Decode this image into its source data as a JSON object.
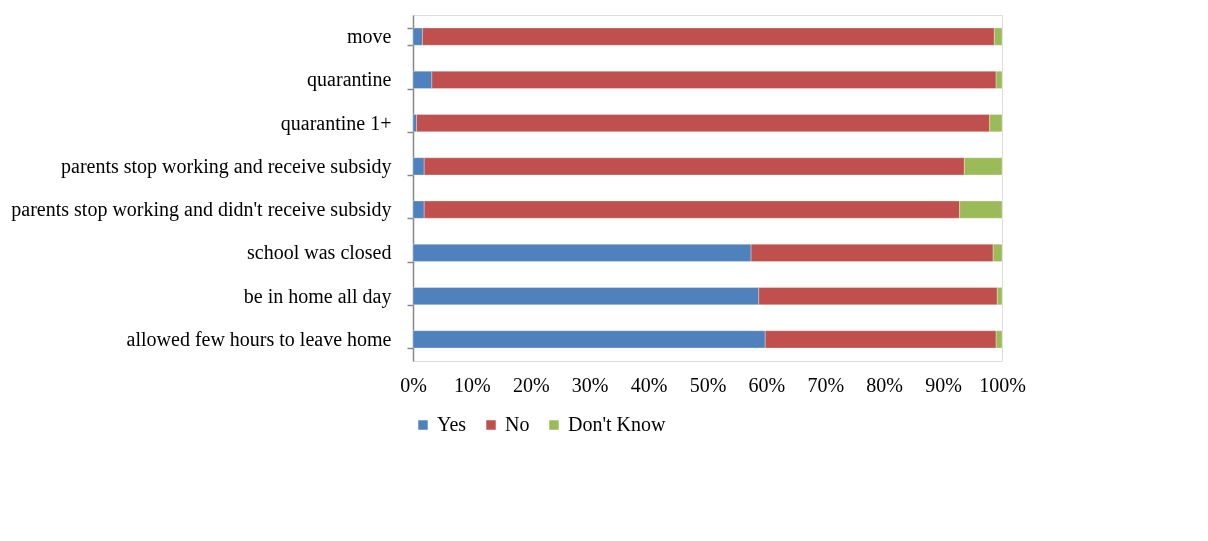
{
  "chart_data": {
    "type": "bar",
    "orientation": "horizontal",
    "stacked": true,
    "categories": [
      "move",
      "quarantine",
      "quarantine 1+",
      "parents stop working and receive  subsidy",
      "parents stop working and didn't receive  subsidy",
      "school was closed",
      "be in home all day",
      "allowed few hours to leave home"
    ],
    "series": [
      {
        "name": "Yes",
        "color": "#4f81bd",
        "values": [
          1.6,
          3.2,
          0.6,
          1.9,
          1.9,
          57.4,
          58.7,
          59.8
        ]
      },
      {
        "name": "No",
        "color": "#c0504d",
        "values": [
          97.1,
          95.8,
          97.3,
          91.7,
          90.9,
          41.1,
          40.5,
          39.2
        ]
      },
      {
        "name": "Don't Know",
        "color": "#9bbb59",
        "values": [
          1.3,
          1.0,
          2.1,
          6.4,
          7.2,
          1.5,
          0.8,
          1.0
        ]
      }
    ],
    "xlim": [
      0,
      100
    ],
    "xticks": [
      {
        "value": 0,
        "label": "0%"
      },
      {
        "value": 10,
        "label": "10%"
      },
      {
        "value": 20,
        "label": "20%"
      },
      {
        "value": 30,
        "label": "30%"
      },
      {
        "value": 40,
        "label": "40%"
      },
      {
        "value": 50,
        "label": "50%"
      },
      {
        "value": 60,
        "label": "60%"
      },
      {
        "value": 70,
        "label": "70%"
      },
      {
        "value": 80,
        "label": "80%"
      },
      {
        "value": 90,
        "label": "90%"
      },
      {
        "value": 100,
        "label": "100%"
      }
    ],
    "grid": false,
    "legend": "bottom"
  }
}
